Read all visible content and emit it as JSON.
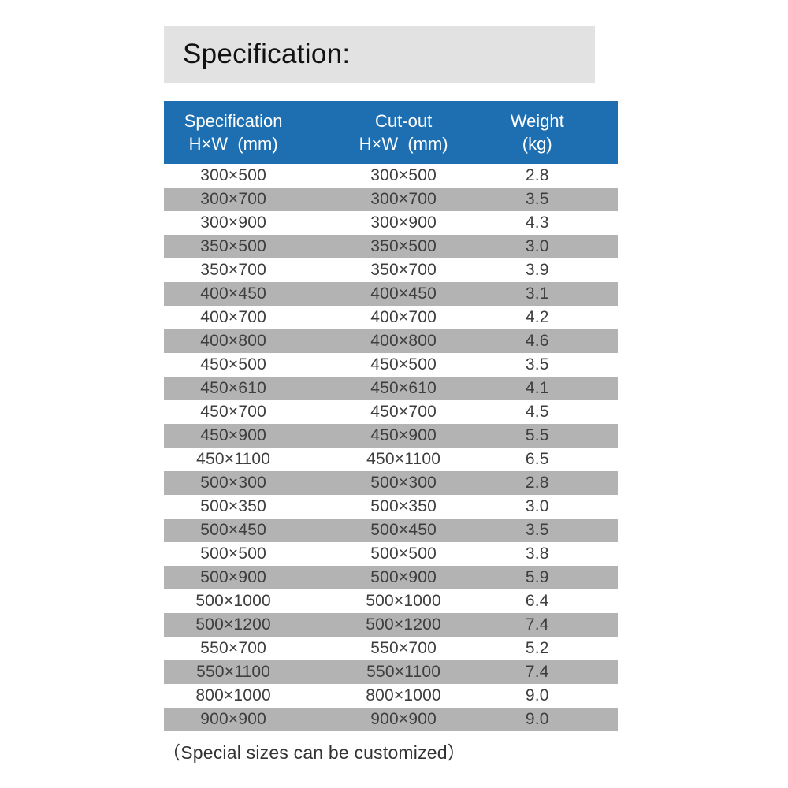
{
  "title": "Specification:",
  "footnote": "（Special sizes can be customized）",
  "colors": {
    "header_bg": "#1e6fb2",
    "header_text": "#ffffff",
    "alt_row_bg": "#b3b3b3",
    "title_bar_bg": "#e2e2e2",
    "row_text": "#3e3e3e"
  },
  "table": {
    "columns": [
      {
        "line1": "Specification",
        "line2": "H×W  (mm)"
      },
      {
        "line1": "Cut-out",
        "line2": "H×W  (mm)"
      },
      {
        "line1": "Weight",
        "line2": "(kg)"
      }
    ],
    "rows": [
      {
        "spec": "300×500",
        "cutout": "300×500",
        "weight": "2.8"
      },
      {
        "spec": "300×700",
        "cutout": "300×700",
        "weight": "3.5"
      },
      {
        "spec": "300×900",
        "cutout": "300×900",
        "weight": "4.3"
      },
      {
        "spec": "350×500",
        "cutout": "350×500",
        "weight": "3.0"
      },
      {
        "spec": "350×700",
        "cutout": "350×700",
        "weight": "3.9"
      },
      {
        "spec": "400×450",
        "cutout": "400×450",
        "weight": "3.1"
      },
      {
        "spec": "400×700",
        "cutout": "400×700",
        "weight": "4.2"
      },
      {
        "spec": "400×800",
        "cutout": "400×800",
        "weight": "4.6"
      },
      {
        "spec": "450×500",
        "cutout": "450×500",
        "weight": "3.5"
      },
      {
        "spec": "450×610",
        "cutout": "450×610",
        "weight": "4.1"
      },
      {
        "spec": "450×700",
        "cutout": "450×700",
        "weight": "4.5"
      },
      {
        "spec": "450×900",
        "cutout": "450×900",
        "weight": "5.5"
      },
      {
        "spec": "450×1100",
        "cutout": "450×1100",
        "weight": "6.5"
      },
      {
        "spec": "500×300",
        "cutout": "500×300",
        "weight": "2.8"
      },
      {
        "spec": "500×350",
        "cutout": "500×350",
        "weight": "3.0"
      },
      {
        "spec": "500×450",
        "cutout": "500×450",
        "weight": "3.5"
      },
      {
        "spec": "500×500",
        "cutout": "500×500",
        "weight": "3.8"
      },
      {
        "spec": "500×900",
        "cutout": "500×900",
        "weight": "5.9"
      },
      {
        "spec": "500×1000",
        "cutout": "500×1000",
        "weight": "6.4"
      },
      {
        "spec": "500×1200",
        "cutout": "500×1200",
        "weight": "7.4"
      },
      {
        "spec": "550×700",
        "cutout": "550×700",
        "weight": "5.2"
      },
      {
        "spec": "550×1100",
        "cutout": "550×1100",
        "weight": "7.4"
      },
      {
        "spec": "800×1000",
        "cutout": "800×1000",
        "weight": "9.0"
      },
      {
        "spec": "900×900",
        "cutout": "900×900",
        "weight": "9.0"
      }
    ]
  }
}
